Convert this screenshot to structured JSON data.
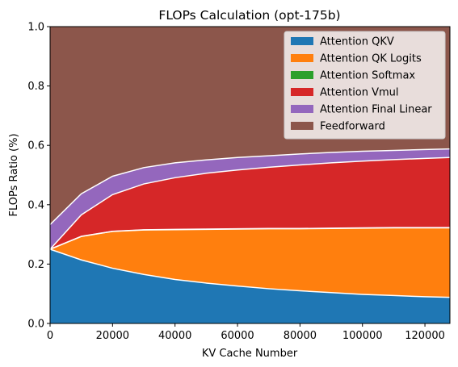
{
  "chart_data": {
    "type": "area",
    "stacked": true,
    "title": "FLOPs Calculation (opt-175b)",
    "xlabel": "KV Cache Number",
    "ylabel": "FLOPs Ratio (%)",
    "xlim": [
      0,
      128000
    ],
    "ylim": [
      0,
      1.0
    ],
    "xticks": [
      0,
      20000,
      40000,
      60000,
      80000,
      100000,
      120000
    ],
    "yticks": [
      0.0,
      0.2,
      0.4,
      0.6,
      0.8,
      1.0
    ],
    "xtick_labels": [
      "0",
      "20000",
      "40000",
      "60000",
      "80000",
      "100000",
      "120000"
    ],
    "ytick_labels": [
      "0.0",
      "0.2",
      "0.4",
      "0.6",
      "0.8",
      "1.0"
    ],
    "grid": false,
    "legend_position": "upper-right",
    "x": [
      0,
      10000,
      20000,
      30000,
      40000,
      50000,
      60000,
      70000,
      80000,
      90000,
      100000,
      110000,
      120000,
      128000
    ],
    "series": [
      {
        "name": "Attention QKV",
        "color": "#1f77b4",
        "values": [
          0.25,
          0.214,
          0.186,
          0.165,
          0.148,
          0.136,
          0.126,
          0.117,
          0.11,
          0.104,
          0.098,
          0.094,
          0.09,
          0.088
        ]
      },
      {
        "name": "Attention QK Logits",
        "color": "#ff7f0e",
        "values": [
          0.0,
          0.079,
          0.124,
          0.15,
          0.168,
          0.181,
          0.192,
          0.202,
          0.209,
          0.216,
          0.223,
          0.228,
          0.232,
          0.234
        ]
      },
      {
        "name": "Attention Softmax",
        "color": "#2ca02c",
        "values": [
          0.0,
          0.0005,
          0.0006,
          0.0007,
          0.0008,
          0.0008,
          0.0008,
          0.0008,
          0.0009,
          0.0009,
          0.0009,
          0.0009,
          0.0009,
          0.0009
        ]
      },
      {
        "name": "Attention Vmul",
        "color": "#d62728",
        "values": [
          0.0,
          0.0725,
          0.1234,
          0.1543,
          0.1742,
          0.1882,
          0.1982,
          0.2062,
          0.2141,
          0.2201,
          0.2251,
          0.2291,
          0.2331,
          0.2361
        ]
      },
      {
        "name": "Attention Final Linear",
        "color": "#9467bd",
        "values": [
          0.083,
          0.071,
          0.062,
          0.055,
          0.05,
          0.045,
          0.042,
          0.039,
          0.037,
          0.035,
          0.033,
          0.031,
          0.03,
          0.029
        ]
      },
      {
        "name": "Feedforward",
        "color": "#8c564b",
        "values": [
          0.667,
          0.563,
          0.504,
          0.475,
          0.459,
          0.449,
          0.441,
          0.435,
          0.429,
          0.424,
          0.42,
          0.417,
          0.414,
          0.412
        ]
      }
    ]
  }
}
